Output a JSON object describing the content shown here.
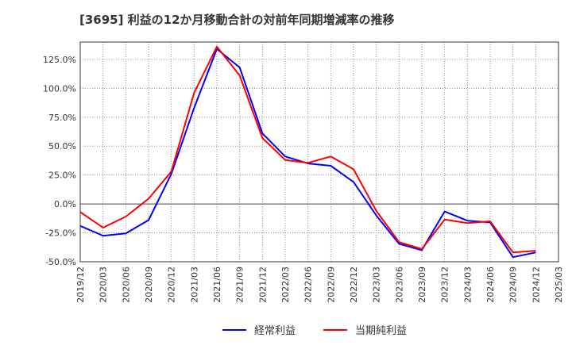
{
  "chart_data": {
    "type": "line",
    "title": "[3695]  利益の12か月移動合計の対前年同期増減率の推移",
    "xlabel": "",
    "ylabel": "",
    "ylim": [
      -50,
      140
    ],
    "yticks": [
      -50,
      -25,
      0,
      25,
      50,
      75,
      100,
      125
    ],
    "ytick_labels": [
      "-50.0%",
      "-25.0%",
      "0.0%",
      "25.0%",
      "50.0%",
      "75.0%",
      "100.0%",
      "125.0%"
    ],
    "x": [
      "2019/12",
      "2020/03",
      "2020/06",
      "2020/09",
      "2020/12",
      "2021/03",
      "2021/06",
      "2021/09",
      "2021/12",
      "2022/03",
      "2022/06",
      "2022/09",
      "2022/12",
      "2023/03",
      "2023/06",
      "2023/09",
      "2023/12",
      "2024/03",
      "2024/06",
      "2024/09",
      "2024/12",
      "2025/03"
    ],
    "grid": true,
    "legend_position": "bottom-center",
    "series": [
      {
        "name": "経常利益",
        "color": "#0000ff",
        "values": [
          -19,
          -27.5,
          -25.5,
          -14,
          26,
          83,
          134,
          118,
          61,
          41,
          35,
          33,
          19,
          -10,
          -34.5,
          -40,
          -6.5,
          -14.5,
          -16,
          -46,
          -42,
          null
        ]
      },
      {
        "name": "当期純利益",
        "color": "#ff0000",
        "values": [
          -7,
          -20.5,
          -11,
          4.5,
          28,
          96,
          136,
          111,
          57,
          38,
          35.5,
          41,
          30,
          -6,
          -33,
          -39,
          -13.5,
          -16.5,
          -15,
          -42,
          -40.5,
          null
        ]
      }
    ]
  }
}
